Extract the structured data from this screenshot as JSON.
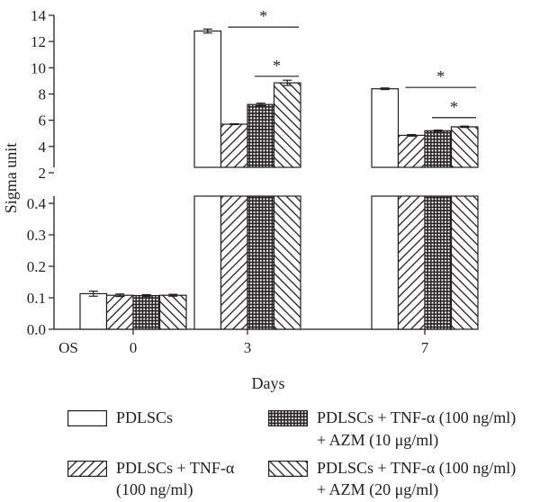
{
  "chart_data": {
    "type": "bar",
    "ylabel": "Sigma unit",
    "xlabel": "Days",
    "x_origin_label": "OS",
    "categories": [
      "0",
      "3",
      "7"
    ],
    "y_axis_broken": true,
    "y_segments": [
      {
        "range": [
          0.0,
          0.4
        ],
        "ticks": [
          "0.0",
          "0.1",
          "0.2",
          "0.3",
          "0.4"
        ]
      },
      {
        "range": [
          2,
          14
        ],
        "ticks": [
          "2",
          "4",
          "6",
          "8",
          "10",
          "12",
          "14"
        ]
      }
    ],
    "series": [
      {
        "name": "PDLSCs",
        "pattern": "white",
        "values": [
          0.113,
          12.8,
          8.4
        ],
        "errors": [
          0.008,
          0.15,
          0.06
        ]
      },
      {
        "name": "PDLSCs + TNF-α (100 ng/ml)",
        "pattern": "forward-hatch",
        "values": [
          0.108,
          5.7,
          4.85
        ],
        "errors": [
          0.004,
          0.03,
          0.06
        ]
      },
      {
        "name": "PDLSCs + TNF-α (100 ng/ml) + AZM (10 μg/ml)",
        "pattern": "grid",
        "values": [
          0.107,
          7.2,
          5.2
        ],
        "errors": [
          0.003,
          0.1,
          0.05
        ]
      },
      {
        "name": "PDLSCs + TNF-α (100 ng/ml) + AZM (20 μg/ml)",
        "pattern": "back-hatch",
        "values": [
          0.108,
          8.85,
          5.5
        ],
        "errors": [
          0.003,
          0.2,
          0.05
        ]
      }
    ],
    "significance": [
      {
        "category": "3",
        "from_series": 1,
        "to_series": 3,
        "label": "*",
        "level": 13.1
      },
      {
        "category": "3",
        "from_series": 2,
        "to_series": 3,
        "label": "*",
        "level": 9.35
      },
      {
        "category": "7",
        "from_series": 1,
        "to_series": 3,
        "label": "*",
        "level": 8.5
      },
      {
        "category": "7",
        "from_series": 2,
        "to_series": 3,
        "label": "*",
        "level": 6.2
      }
    ],
    "grid": false,
    "legend_position": "bottom"
  },
  "legend": {
    "items": [
      {
        "lines": [
          "PDLSCs"
        ]
      },
      {
        "lines": [
          "PDLSCs + TNF-α (100 ng/ml)",
          "+ AZM (10 μg/ml)"
        ]
      },
      {
        "lines": [
          "PDLSCs + TNF-α",
          "(100 ng/ml)"
        ]
      },
      {
        "lines": [
          "PDLSCs + TNF-α (100 ng/ml)",
          "+ AZM (20 μg/ml)"
        ]
      }
    ]
  },
  "colors": {
    "ink": "#231f20",
    "background": "#ffffff"
  }
}
